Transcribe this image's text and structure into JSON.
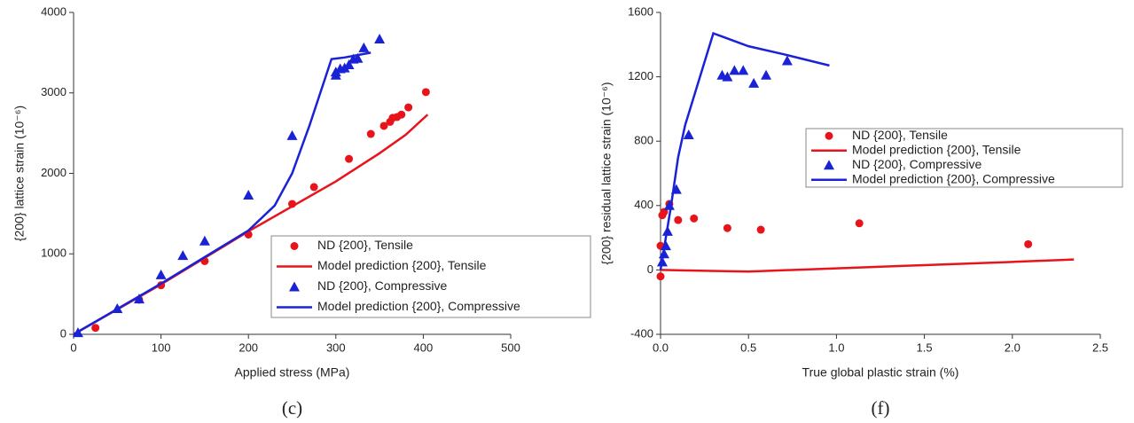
{
  "chart_data": [
    {
      "type": "scatter",
      "caption": "(c)",
      "xlabel": "Applied stress (MPa)",
      "ylabel": "{200} lattice strain (10⁻⁶)",
      "xlim": [
        0,
        500
      ],
      "xticks": [
        0,
        100,
        200,
        300,
        400,
        500
      ],
      "ylim": [
        0,
        4000
      ],
      "yticks": [
        0,
        1000,
        2000,
        3000,
        4000
      ],
      "legend": "lower right",
      "series": [
        {
          "name": "ND {200}, Tensile",
          "color": "#e8141b",
          "style": "circle",
          "x": [
            25,
            75,
            100,
            150,
            200,
            250,
            275,
            315,
            340,
            355,
            362,
            365,
            370,
            375,
            383,
            403
          ],
          "values": [
            80,
            430,
            610,
            910,
            1240,
            1620,
            1830,
            2180,
            2490,
            2590,
            2640,
            2690,
            2700,
            2730,
            2820,
            3010
          ]
        },
        {
          "name": "Model prediction {200}, Tensile",
          "color": "#e8141b",
          "style": "line",
          "x": [
            0,
            100,
            200,
            300,
            350,
            380,
            405
          ],
          "values": [
            0,
            620,
            1280,
            1900,
            2250,
            2480,
            2730
          ]
        },
        {
          "name": "ND {200}, Compressive",
          "color": "#1a22d6",
          "style": "triangle",
          "x": [
            5,
            50,
            75,
            100,
            125,
            150,
            200,
            250,
            300,
            300,
            305,
            310,
            315,
            320,
            325,
            332,
            350
          ],
          "values": [
            20,
            320,
            440,
            740,
            980,
            1160,
            1730,
            2470,
            3260,
            3220,
            3300,
            3310,
            3350,
            3420,
            3430,
            3560,
            3670
          ]
        },
        {
          "name": "Model prediction {200}, Compressive",
          "color": "#1a22d6",
          "style": "line",
          "x": [
            0,
            100,
            200,
            230,
            250,
            270,
            295,
            310,
            340
          ],
          "values": [
            0,
            630,
            1290,
            1600,
            2000,
            2600,
            3420,
            3440,
            3500
          ]
        }
      ]
    },
    {
      "type": "scatter",
      "caption": "(f)",
      "xlabel": "True global plastic strain (%)",
      "ylabel": "{200} residual lattice strain (10⁻⁶)",
      "xlim": [
        0,
        2.5
      ],
      "xticks": [
        {
          "value": 0,
          "label": "0.0"
        },
        0.5,
        {
          "value": 1,
          "label": "1.0"
        },
        1.5,
        {
          "value": 2,
          "label": "2.0"
        },
        2.5
      ],
      "ylim": [
        -400,
        1600
      ],
      "yticks": [
        -400,
        0,
        400,
        800,
        1200,
        1600
      ],
      "legend": "center right",
      "series": [
        {
          "name": "ND {200}, Tensile",
          "color": "#e8141b",
          "style": "circle",
          "x": [
            0,
            0,
            0.01,
            0.02,
            0.05,
            0.1,
            0.19,
            0.38,
            0.57,
            1.13,
            2.09
          ],
          "values": [
            -40,
            150,
            340,
            360,
            410,
            310,
            320,
            260,
            250,
            290,
            160
          ]
        },
        {
          "name": "Model prediction {200}, Tensile",
          "color": "#e8141b",
          "style": "line",
          "x": [
            0,
            0.5,
            1,
            1.5,
            2,
            2.35
          ],
          "values": [
            0,
            -10,
            10,
            30,
            50,
            65
          ]
        },
        {
          "name": "ND {200}, Compressive",
          "color": "#1a22d6",
          "style": "triangle",
          "x": [
            0.01,
            0.02,
            0.03,
            0.04,
            0.05,
            0.09,
            0.16,
            0.35,
            0.38,
            0.42,
            0.47,
            0.53,
            0.6,
            0.72
          ],
          "values": [
            50,
            100,
            150,
            240,
            400,
            500,
            840,
            1210,
            1200,
            1240,
            1240,
            1160,
            1210,
            1300
          ]
        },
        {
          "name": "Model prediction {200}, Compressive",
          "color": "#1a22d6",
          "style": "line",
          "x": [
            0,
            0.03,
            0.06,
            0.1,
            0.14,
            0.3,
            0.35,
            0.5,
            0.7,
            0.96
          ],
          "values": [
            0,
            200,
            400,
            700,
            900,
            1470,
            1450,
            1390,
            1340,
            1270
          ]
        }
      ]
    }
  ]
}
